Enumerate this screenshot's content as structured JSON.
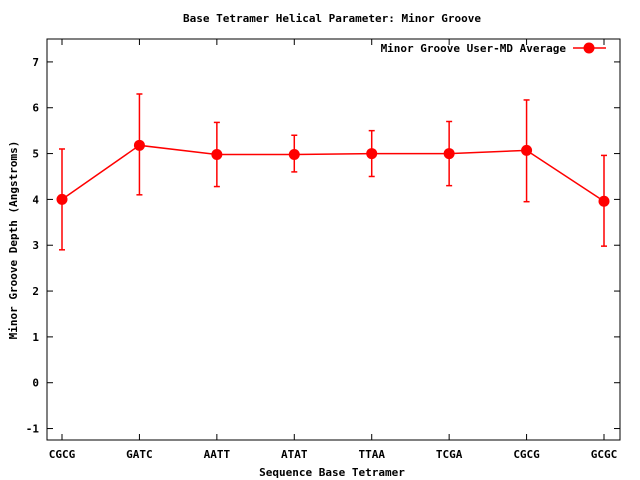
{
  "chart_data": {
    "type": "line",
    "title": "Base Tetramer Helical Parameter: Minor Groove",
    "xlabel": "Sequence Base Tetramer",
    "ylabel": "Minor Groove Depth (Angstroms)",
    "categories": [
      "CGCG",
      "GATC",
      "AATT",
      "ATAT",
      "TTAA",
      "TCGA",
      "CGCG",
      "GCGC"
    ],
    "ylim": [
      -1.25,
      7.5
    ],
    "yticks": [
      -1,
      0,
      1,
      2,
      3,
      4,
      5,
      6,
      7
    ],
    "grid": false,
    "legend_position": "top-right",
    "series": [
      {
        "name": "Minor Groove User-MD Average",
        "color": "#ff0000",
        "values": [
          4.0,
          5.18,
          4.98,
          4.98,
          5.0,
          5.0,
          5.07,
          3.96
        ],
        "error_low": [
          2.9,
          4.1,
          4.28,
          4.6,
          4.5,
          4.3,
          3.95,
          2.98
        ],
        "error_high": [
          5.1,
          6.3,
          5.68,
          5.4,
          5.5,
          5.7,
          6.17,
          4.96
        ]
      }
    ]
  }
}
